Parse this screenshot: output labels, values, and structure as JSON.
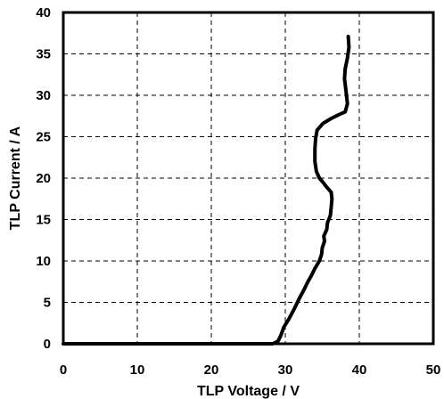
{
  "chart_data": {
    "type": "line",
    "title": "",
    "xlabel": "TLP Voltage / V",
    "ylabel": "TLP Current / A",
    "xlim": [
      0,
      50
    ],
    "ylim": [
      0,
      40
    ],
    "xticks": [
      "0",
      "10",
      "20",
      "30",
      "40",
      "50"
    ],
    "yticks": [
      "0",
      "5",
      "10",
      "15",
      "20",
      "25",
      "30",
      "35",
      "40"
    ],
    "grid": true,
    "colors": {
      "series": "#000000",
      "grid": "#000000",
      "frame": "#000000"
    },
    "series": [
      {
        "x": [
          0,
          10,
          20,
          28.3,
          29.0,
          29.4,
          29.8,
          30.5,
          31.2,
          31.9,
          32.5,
          33.0,
          33.5,
          34.0,
          34.6,
          34.9,
          35.0,
          35.3,
          35.2,
          35.6,
          35.7,
          36.1,
          36.2,
          36.3,
          36.2,
          35.6,
          35.1,
          34.6,
          34.2,
          34.0,
          34.0,
          34.1,
          34.3,
          35.1,
          36.2,
          37.1,
          38.1,
          38.4,
          38.2,
          38.0,
          38.1,
          38.4,
          38.6,
          38.5
        ],
        "y": [
          0,
          0,
          0,
          0,
          0.3,
          1.0,
          2.0,
          3.0,
          4.2,
          5.5,
          6.5,
          7.4,
          8.2,
          9.1,
          10.0,
          10.8,
          11.6,
          12.4,
          13.0,
          13.8,
          14.6,
          15.5,
          16.5,
          17.5,
          18.3,
          18.9,
          19.5,
          20.0,
          20.8,
          22.0,
          23.5,
          24.8,
          25.8,
          26.6,
          27.2,
          27.6,
          28.0,
          29.0,
          30.5,
          32.0,
          33.2,
          34.5,
          35.8,
          37.1
        ]
      }
    ]
  }
}
